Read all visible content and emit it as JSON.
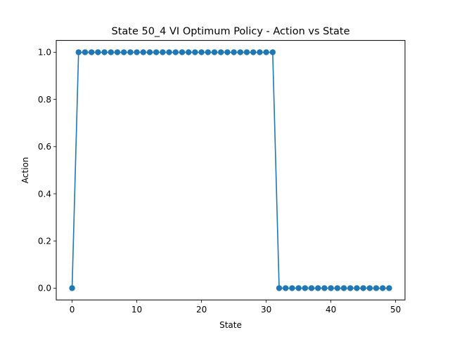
{
  "chart_data": {
    "type": "line",
    "title": "State 50_4 VI Optimum Policy - Action vs State",
    "xlabel": "State",
    "ylabel": "Action",
    "xlim": [
      -2.45,
      51.45
    ],
    "ylim": [
      -0.05,
      1.05
    ],
    "xticks": [
      0,
      10,
      20,
      30,
      40,
      50
    ],
    "yticks": [
      0.0,
      0.2,
      0.4,
      0.6,
      0.8,
      1.0
    ],
    "xtick_labels": [
      "0",
      "10",
      "20",
      "30",
      "40",
      "50"
    ],
    "ytick_labels": [
      "0.0",
      "0.2",
      "0.4",
      "0.6",
      "0.8",
      "1.0"
    ],
    "grid": false,
    "color": "#1f77b4",
    "marker": "circle",
    "series": [
      {
        "x": [
          0,
          1,
          2,
          3,
          4,
          5,
          6,
          7,
          8,
          9,
          10,
          11,
          12,
          13,
          14,
          15,
          16,
          17,
          18,
          19,
          20,
          21,
          22,
          23,
          24,
          25,
          26,
          27,
          28,
          29,
          30,
          31,
          32,
          33,
          34,
          35,
          36,
          37,
          38,
          39,
          40,
          41,
          42,
          43,
          44,
          45,
          46,
          47,
          48,
          49
        ],
        "values": [
          0,
          1,
          1,
          1,
          1,
          1,
          1,
          1,
          1,
          1,
          1,
          1,
          1,
          1,
          1,
          1,
          1,
          1,
          1,
          1,
          1,
          1,
          1,
          1,
          1,
          1,
          1,
          1,
          1,
          1,
          1,
          1,
          0,
          0,
          0,
          0,
          0,
          0,
          0,
          0,
          0,
          0,
          0,
          0,
          0,
          0,
          0,
          0,
          0,
          0
        ]
      }
    ]
  }
}
